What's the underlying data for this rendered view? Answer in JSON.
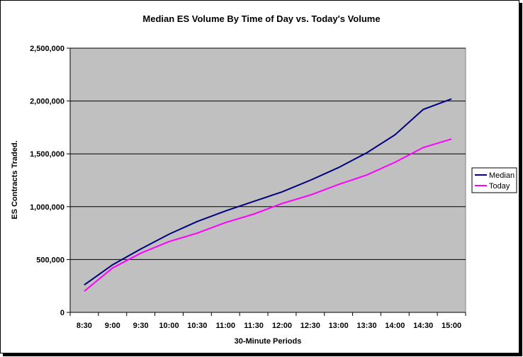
{
  "chart_data": {
    "type": "line",
    "title": "Median ES Volume By Time of Day vs. Today's Volume",
    "xlabel": "30-Minute Periods",
    "ylabel": "ES Contracts Traded.",
    "ylim": [
      0,
      2500000
    ],
    "yticks": [
      0,
      500000,
      1000000,
      1500000,
      2000000,
      2500000
    ],
    "ytick_labels": [
      "0",
      "500,000",
      "1,000,000",
      "1,500,000",
      "2,000,000",
      "2,500,000"
    ],
    "categories": [
      "8:30",
      "9:00",
      "9:30",
      "10:00",
      "10:30",
      "11:00",
      "11:30",
      "12:00",
      "12:30",
      "13:00",
      "13:30",
      "14:00",
      "14:30",
      "15:00"
    ],
    "grid": "horizontal major gridlines",
    "legend_position": "right",
    "plot_background": "#c0c0c0",
    "series": [
      {
        "name": "Median",
        "color": "#000080",
        "values": [
          260000,
          450000,
          600000,
          740000,
          860000,
          960000,
          1050000,
          1140000,
          1250000,
          1370000,
          1510000,
          1680000,
          1920000,
          2020000
        ]
      },
      {
        "name": "Today",
        "color": "#ff00ff",
        "values": [
          200000,
          420000,
          560000,
          670000,
          750000,
          850000,
          930000,
          1030000,
          1110000,
          1210000,
          1300000,
          1420000,
          1560000,
          1640000
        ]
      }
    ]
  }
}
